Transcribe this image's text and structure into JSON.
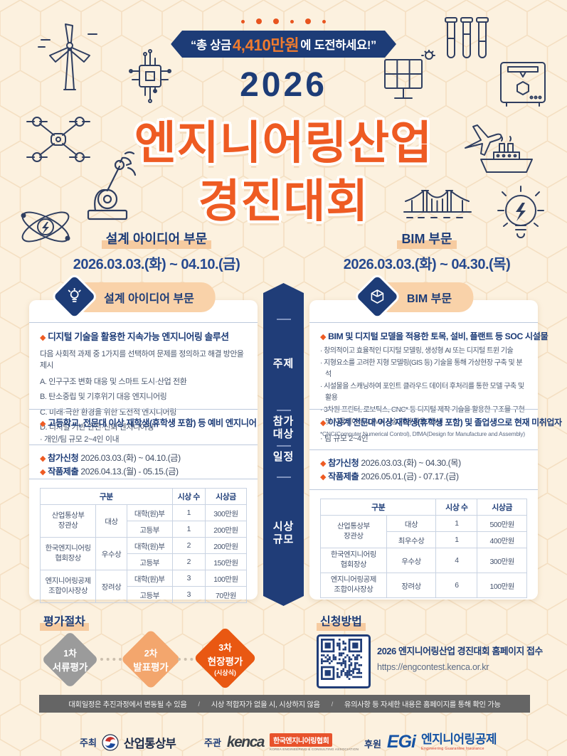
{
  "glyphs": {
    "diamond": "◆"
  },
  "banner": {
    "prefix": "“총 상금 ",
    "highlight": "4,410만원",
    "suffix": "에 도전하세요!”"
  },
  "title": {
    "year": "2026",
    "line1": "엔지니어링산업",
    "line2": "경진대회"
  },
  "divisions": [
    {
      "name": "설계 아이디어 부문",
      "period": "2026.03.03.(화) ~ 04.10.(금)"
    },
    {
      "name": "BIM 부문",
      "period": "2026.03.03.(화) ~ 04.30.(목)"
    }
  ],
  "ribbon": {
    "topic": "주제",
    "target": "참가\n대상",
    "schedule": "일정",
    "awards": "시상\n규모"
  },
  "left_card": {
    "header": "설계 아이디어 부문",
    "topic_title": "디지털 기술을 활용한 지속가능 엔지니어링 솔루션",
    "topic_desc": "다음 사회적 과제 중 1가지를 선택하여 문제를 정의하고 해결 방안을 제시",
    "topic_items": [
      "A. 인구구조 변화 대응 및 스마트 도시·산업 전환",
      "B. 탄소중립 및 기후위기 대응 엔지니어링",
      "C. 미래·극한 환경을 위한 도전적 엔지니어링",
      "D. 디지털 기반 안전·신뢰 엔지니어링"
    ],
    "target_title": "고등학교, 전문대 이상 재학생(휴학생 포함) 등 예비 엔지니어",
    "target_sub": "· 개인/팀 규모 2~4인 이내",
    "apply_label": "참가신청",
    "apply_period": "2026.03.03.(화) ~ 04.10.(금)",
    "submit_label": "작품제출",
    "submit_period": "2026.04.13.(월) - 05.15.(금)",
    "table": {
      "col_group": "구분",
      "col_count": "시상 수",
      "col_prize": "시상금",
      "rows": [
        {
          "org": "산업통상부\n장관상",
          "award": "대상",
          "division": "대학(원)부",
          "count": "1",
          "prize": "300만원"
        },
        {
          "division": "고등부",
          "count": "1",
          "prize": "200만원"
        },
        {
          "org": "한국엔지니어링\n협회장상",
          "award": "우수상",
          "division": "대학(원)부",
          "count": "2",
          "prize": "200만원"
        },
        {
          "division": "고등부",
          "count": "2",
          "prize": "150만원"
        },
        {
          "org": "엔지니어링공제\n조합이사장상",
          "award": "장려상",
          "division": "대학(원)부",
          "count": "3",
          "prize": "100만원"
        },
        {
          "division": "고등부",
          "count": "3",
          "prize": "70만원"
        }
      ]
    }
  },
  "right_card": {
    "header": "BIM 부문",
    "topic_title": "BIM 및 디지털 모델을 적용한 토목, 설비, 플랜트 등 SOC 시설물",
    "topic_items": [
      "· 창의적이고 효율적인 디지털 모델링, 생성형 AI 또는 디지털 트윈 기술",
      "· 지형요소를 고려한 지형 모델링(GIS 등) 기술을 통해 가상현장 구축 및 분석",
      "· 시설물을 스캐닝하여 포인트 클라우드 데이터 후처리를 통한 모델 구축 및 활용",
      "· 3차원 프린터, 로보틱스, CNC* 등 디지털 제작 기술을 활용한 구조물 구현 및 시뮬레이션 (DfMA 기술 개념 활용 가능)"
    ],
    "topic_note": "*CNC(Computer Numerical Control), DfMA(Design for Manufacture and Assembly)",
    "target_title": "이공계 전문대 이상 재학생(휴학생 포함) 및 졸업생으로 현재 미취업자",
    "target_sub": "· 팀 규모 2~4인",
    "apply_label": "참가신청",
    "apply_period": "2026.03.03.(화) ~ 04.30.(목)",
    "submit_label": "작품제출",
    "submit_period": "2026.05.01.(금) - 07.17.(금)",
    "table": {
      "col_group": "구분",
      "col_count": "시상 수",
      "col_prize": "시상금",
      "rows": [
        {
          "org": "산업통상부\n장관상",
          "award": "대상",
          "count": "1",
          "prize": "500만원"
        },
        {
          "award": "최우수상",
          "count": "1",
          "prize": "400만원"
        },
        {
          "org": "한국엔지니어링\n협회장상",
          "award": "우수상",
          "count": "4",
          "prize": "300만원"
        },
        {
          "org": "엔지니어링공제\n조합이사장상",
          "award": "장려상",
          "count": "6",
          "prize": "100만원"
        }
      ]
    }
  },
  "evaluation": {
    "title": "평가절차",
    "steps": [
      {
        "stage": "1차",
        "name": "서류평가",
        "color": "#9b9b9b"
      },
      {
        "stage": "2차",
        "name": "발표평가",
        "color": "#f3a66d"
      },
      {
        "stage": "3차",
        "name": "현장평가",
        "sub": "(시상식)",
        "color": "#e95812"
      }
    ]
  },
  "application": {
    "title": "신청방법",
    "desc": "2026 엔지니어링산업 경진대회 홈페이지 접수",
    "url": "https://engcontest.kenca.or.kr"
  },
  "notice": {
    "separator": "/",
    "items": [
      "대회일정은 추진과정에서 변동될 수 있음",
      "시상 적합자가 없을 시, 시상하지 않음",
      "유의사항 등 자세한 내용은 홈페이지를 통해 확인 가능"
    ]
  },
  "footer": {
    "host_label": "주최",
    "host_name": "산업통상부",
    "organizer_label": "주관",
    "organizer_logo": "kenca",
    "organizer_name": "한국엔지니어링협회",
    "organizer_caption": "KOREA ENGINEERING & CONSULTING ASSOCIATION",
    "sponsor_label": "후원",
    "sponsor_logo": "EGi",
    "sponsor_name": "엔지니어링공제",
    "sponsor_caption": "Engineering Guarantee Insurance"
  },
  "colors": {
    "navy": "#1d3c77",
    "orange": "#ee5b23",
    "peach": "#f9d2a9",
    "cream": "#fcf1df",
    "bar_gray": "#656565"
  },
  "icons": [
    "wind-turbine",
    "circuit-chip",
    "test-tubes",
    "solar-panel",
    "printer-3d",
    "drone",
    "robot-arm",
    "airplane",
    "ship",
    "atom",
    "bridge",
    "light-bulb",
    "lightbulb-badge",
    "cube-badge",
    "qr-code",
    "gov-emblem"
  ]
}
